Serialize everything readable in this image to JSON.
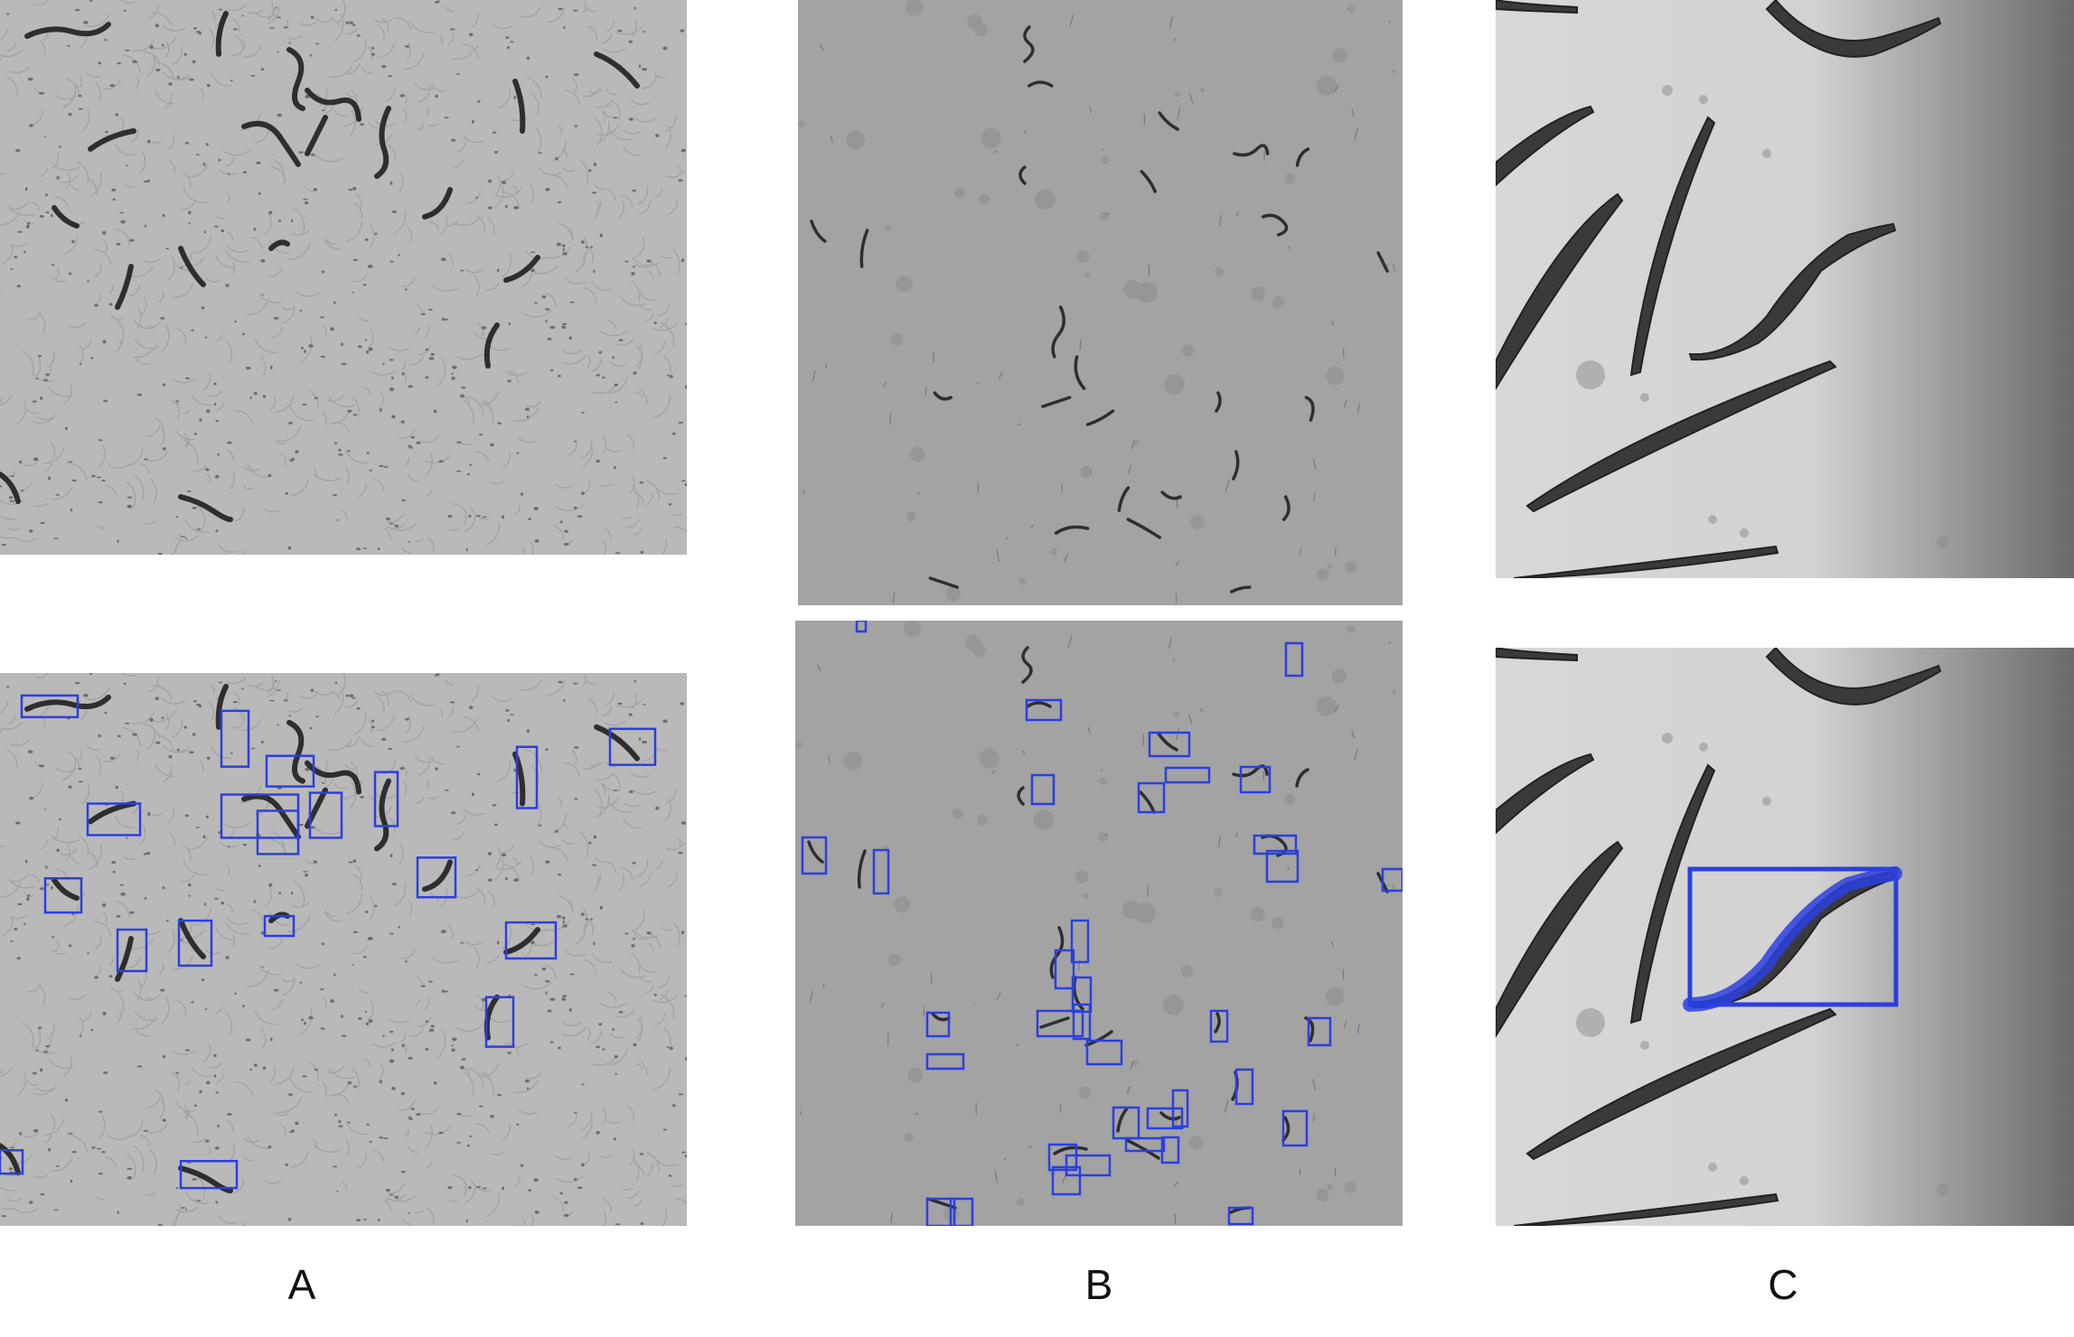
{
  "figure": {
    "labels": [
      "A",
      "B",
      "C"
    ],
    "box_color": "#2b3fe0",
    "worm_color": "#2e2e2e"
  }
}
